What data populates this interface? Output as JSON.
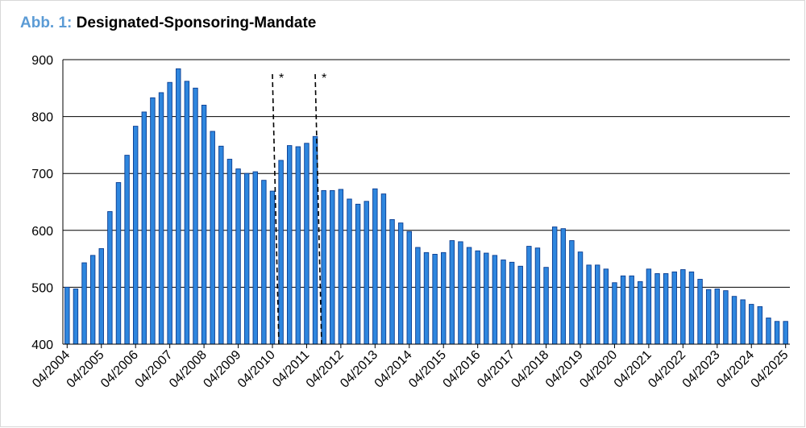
{
  "title": {
    "prefix": "Abb. 1:",
    "text": "Designated-Sponsoring-Mandate"
  },
  "colors": {
    "title_prefix": "#5b9bd5",
    "bar_fill": "#2e86de",
    "bar_stroke": "#0b3d91",
    "grid": "#000000"
  },
  "chart_data": {
    "type": "bar",
    "title": "Designated-Sponsoring-Mandate",
    "xlabel": "",
    "ylabel": "",
    "ylim": [
      400,
      900
    ],
    "yticks": [
      400,
      500,
      600,
      700,
      800,
      900
    ],
    "grid": true,
    "legend": "none",
    "x_tick_labels": [
      "04/2004",
      "04/2005",
      "04/2006",
      "04/2007",
      "04/2008",
      "04/2009",
      "04/2010",
      "04/2011",
      "04/2012",
      "04/2013",
      "04/2014",
      "04/2015",
      "04/2016",
      "04/2017",
      "04/2018",
      "04/2019",
      "04/2020",
      "04/2021",
      "04/2022",
      "04/2023",
      "04/2024",
      "04/2025"
    ],
    "frequency": "quarterly",
    "values": [
      500,
      497,
      543,
      556,
      568,
      633,
      684,
      732,
      783,
      808,
      833,
      842,
      860,
      884,
      862,
      850,
      820,
      774,
      748,
      725,
      708,
      700,
      703,
      688,
      669,
      723,
      749,
      747,
      753,
      765,
      670,
      670,
      672,
      655,
      646,
      651,
      673,
      664,
      619,
      613,
      598,
      570,
      561,
      558,
      561,
      582,
      580,
      570,
      564,
      560,
      556,
      548,
      544,
      537,
      572,
      569,
      535,
      606,
      603,
      582,
      562,
      539,
      539,
      532,
      508,
      520,
      520,
      510,
      532,
      524,
      524,
      527,
      531,
      527,
      514,
      496,
      497,
      494,
      484,
      478,
      470,
      466,
      446,
      440,
      440
    ],
    "annotations": [
      {
        "text": "*",
        "after_index": 24,
        "style": "dashed-line"
      },
      {
        "text": "*",
        "after_index": 29,
        "style": "dashed-line"
      }
    ]
  }
}
